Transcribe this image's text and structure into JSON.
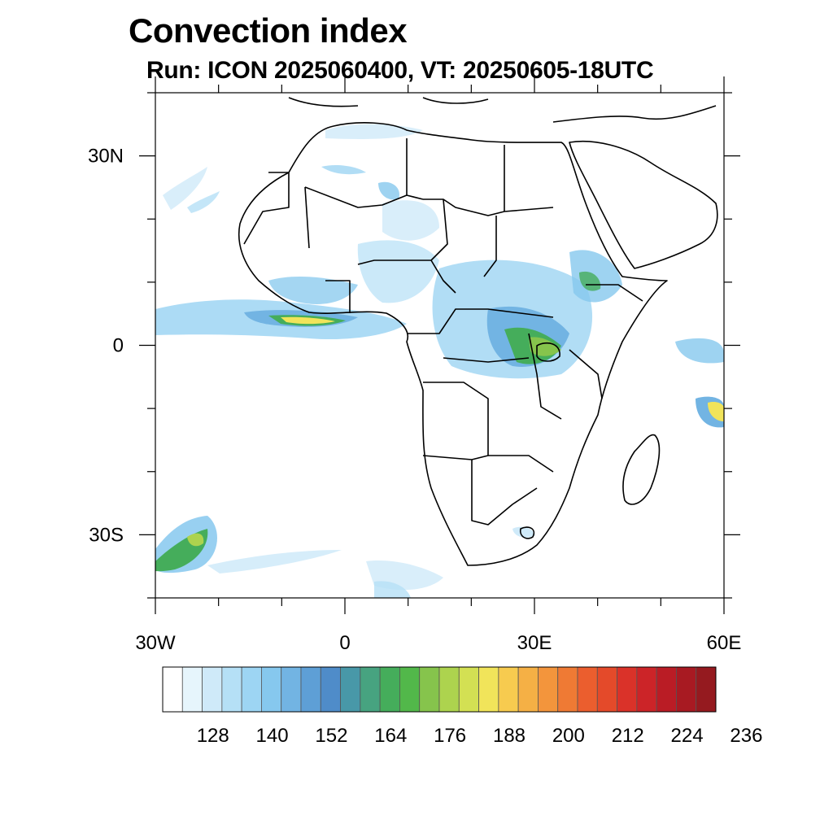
{
  "title": "Convection index",
  "subtitle": "Run: ICON 2025060400,  VT: 20250605-18UTC",
  "map": {
    "lon_range": [
      -30,
      60
    ],
    "lat_range": [
      -40,
      40
    ],
    "x_ticks": [
      {
        "value": -30,
        "label": "30W"
      },
      {
        "value": 0,
        "label": "0"
      },
      {
        "value": 30,
        "label": "30E"
      },
      {
        "value": 60,
        "label": "60E"
      }
    ],
    "y_ticks": [
      {
        "value": 30,
        "label": "30N"
      },
      {
        "value": 0,
        "label": "0"
      },
      {
        "value": -30,
        "label": "30S"
      }
    ]
  },
  "colorbar": {
    "labels": [
      "128",
      "140",
      "152",
      "164",
      "176",
      "188",
      "200",
      "212",
      "224",
      "236"
    ],
    "colors": [
      "#ffffff",
      "#e6f5fc",
      "#cfeaf9",
      "#b5e0f6",
      "#9dd5f3",
      "#86c8ee",
      "#72b4e3",
      "#5e9fd6",
      "#4f8cc9",
      "#4898a8",
      "#47a380",
      "#45ad5b",
      "#52b84a",
      "#86c44c",
      "#add34e",
      "#d3e053",
      "#f1e45a",
      "#f7cb4f",
      "#f5b045",
      "#f3953c",
      "#ef7a34",
      "#eb5e2e",
      "#e44a2a",
      "#da3229",
      "#cc2428",
      "#ba1c25",
      "#a81a22",
      "#951a1f"
    ]
  }
}
